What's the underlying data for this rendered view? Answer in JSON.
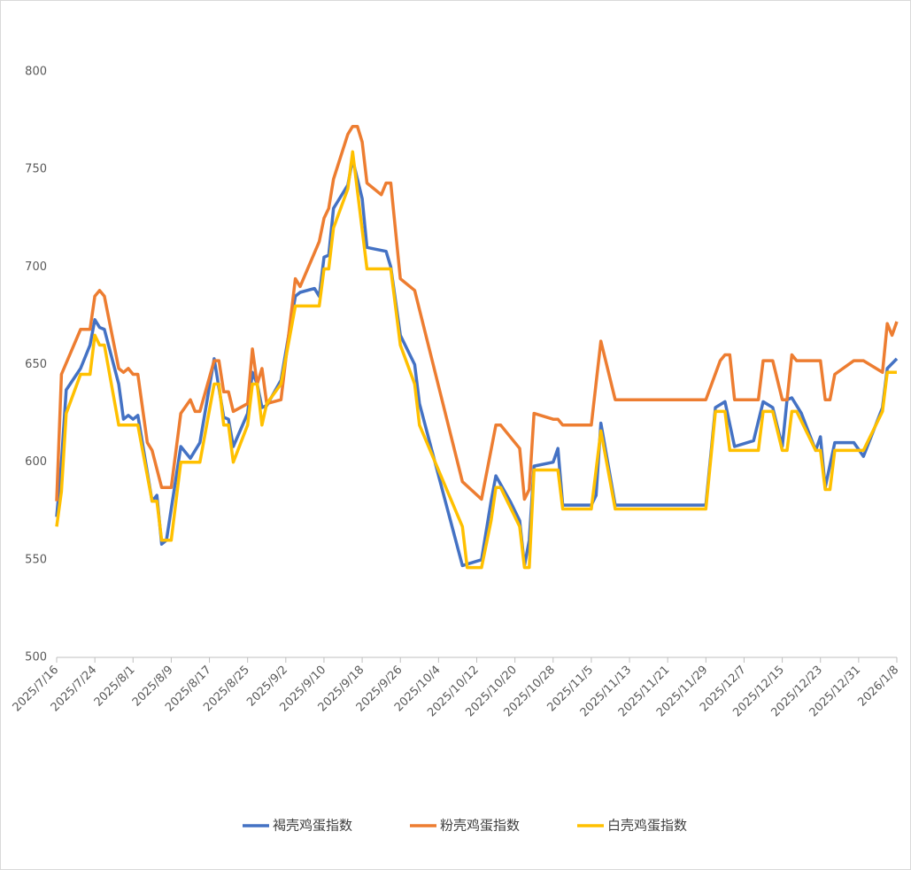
{
  "chart_data": {
    "type": "line",
    "xlim": [
      "2025/7/16",
      "2026/1/8"
    ],
    "xticks": [
      "2025/7/16",
      "2025/7/24",
      "2025/8/1",
      "2025/8/9",
      "2025/8/17",
      "2025/8/25",
      "2025/9/2",
      "2025/9/10",
      "2025/9/18",
      "2025/9/26",
      "2025/10/4",
      "2025/10/12",
      "2025/10/20",
      "2025/10/28",
      "2025/11/5",
      "2025/11/13",
      "2025/11/21",
      "2025/11/29",
      "2025/12/7",
      "2025/12/15",
      "2025/12/23",
      "2025/12/31",
      "2026/1/8"
    ],
    "ylim": [
      500,
      800
    ],
    "yticks": [
      500,
      550,
      600,
      650,
      700,
      750,
      800
    ],
    "grid": false,
    "legend": "bottom",
    "series": [
      {
        "name": "褐壳鸡蛋指数",
        "color": "#4472c4",
        "x": [
          "2025/7/16",
          "2025/7/17",
          "2025/7/18",
          "2025/7/21",
          "2025/7/23",
          "2025/7/24",
          "2025/7/25",
          "2025/7/26",
          "2025/7/29",
          "2025/7/30",
          "2025/7/31",
          "2025/8/1",
          "2025/8/2",
          "2025/8/5",
          "2025/8/6",
          "2025/8/7",
          "2025/8/8",
          "2025/8/11",
          "2025/8/13",
          "2025/8/15",
          "2025/8/18",
          "2025/8/20",
          "2025/8/21",
          "2025/8/22",
          "2025/8/25",
          "2025/8/26",
          "2025/8/27",
          "2025/8/28",
          "2025/8/29",
          "2025/9/1",
          "2025/9/4",
          "2025/9/5",
          "2025/9/8",
          "2025/9/9",
          "2025/9/10",
          "2025/9/11",
          "2025/9/12",
          "2025/9/15",
          "2025/9/16",
          "2025/9/18",
          "2025/9/19",
          "2025/9/23",
          "2025/9/24",
          "2025/9/26",
          "2025/9/29",
          "2025/9/30",
          "2025/10/9",
          "2025/10/13",
          "2025/10/15",
          "2025/10/16",
          "2025/10/19",
          "2025/10/21",
          "2025/10/22",
          "2025/10/23",
          "2025/10/24",
          "2025/10/28",
          "2025/10/29",
          "2025/10/30",
          "2025/11/5",
          "2025/11/6",
          "2025/11/7",
          "2025/11/10",
          "2025/11/29",
          "2025/12/1",
          "2025/12/3",
          "2025/12/5",
          "2025/12/9",
          "2025/12/11",
          "2025/12/13",
          "2025/12/15",
          "2025/12/16",
          "2025/12/17",
          "2025/12/19",
          "2025/12/22",
          "2025/12/23",
          "2025/12/24",
          "2025/12/26",
          "2025/12/30",
          "2026/1/1",
          "2026/1/5",
          "2026/1/6",
          "2026/1/8"
        ],
        "values": [
          572,
          600,
          637,
          648,
          660,
          673,
          669,
          668,
          640,
          622,
          624,
          622,
          624,
          580,
          583,
          558,
          560,
          608,
          602,
          610,
          653,
          623,
          622,
          608,
          625,
          646,
          640,
          628,
          629,
          642,
          685,
          687,
          689,
          685,
          705,
          706,
          730,
          742,
          755,
          735,
          710,
          708,
          700,
          665,
          650,
          630,
          547,
          550,
          580,
          593,
          580,
          570,
          547,
          560,
          598,
          600,
          607,
          578,
          578,
          583,
          620,
          578,
          578,
          628,
          631,
          608,
          611,
          631,
          628,
          608,
          632,
          633,
          625,
          606,
          613,
          587,
          610,
          610,
          603,
          628,
          648,
          653
        ]
      },
      {
        "name": "粉壳鸡蛋指数",
        "color": "#ed7d31",
        "x": [
          "2025/7/16",
          "2025/7/17",
          "2025/7/21",
          "2025/7/23",
          "2025/7/24",
          "2025/7/25",
          "2025/7/26",
          "2025/7/29",
          "2025/7/30",
          "2025/7/31",
          "2025/8/1",
          "2025/8/2",
          "2025/8/4",
          "2025/8/5",
          "2025/8/7",
          "2025/8/9",
          "2025/8/11",
          "2025/8/13",
          "2025/8/14",
          "2025/8/15",
          "2025/8/18",
          "2025/8/19",
          "2025/8/20",
          "2025/8/21",
          "2025/8/22",
          "2025/8/25",
          "2025/8/26",
          "2025/8/27",
          "2025/8/28",
          "2025/8/29",
          "2025/9/1",
          "2025/9/4",
          "2025/9/5",
          "2025/9/9",
          "2025/9/10",
          "2025/9/11",
          "2025/9/12",
          "2025/9/15",
          "2025/9/16",
          "2025/9/17",
          "2025/9/18",
          "2025/9/19",
          "2025/9/22",
          "2025/9/23",
          "2025/9/24",
          "2025/9/26",
          "2025/9/29",
          "2025/10/9",
          "2025/10/13",
          "2025/10/16",
          "2025/10/17",
          "2025/10/21",
          "2025/10/22",
          "2025/10/23",
          "2025/10/24",
          "2025/10/28",
          "2025/10/29",
          "2025/10/30",
          "2025/11/5",
          "2025/11/7",
          "2025/11/10",
          "2025/11/29",
          "2025/12/2",
          "2025/12/3",
          "2025/12/4",
          "2025/12/5",
          "2025/12/10",
          "2025/12/11",
          "2025/12/13",
          "2025/12/15",
          "2025/12/16",
          "2025/12/17",
          "2025/12/18",
          "2025/12/23",
          "2025/12/24",
          "2025/12/25",
          "2025/12/26",
          "2025/12/30",
          "2026/1/1",
          "2026/1/5",
          "2026/1/6",
          "2026/1/7",
          "2026/1/8"
        ],
        "values": [
          580,
          645,
          668,
          668,
          685,
          688,
          685,
          648,
          646,
          648,
          645,
          645,
          610,
          606,
          587,
          587,
          625,
          632,
          626,
          626,
          652,
          652,
          636,
          636,
          626,
          630,
          658,
          640,
          648,
          630,
          632,
          694,
          690,
          713,
          725,
          730,
          745,
          768,
          772,
          772,
          764,
          743,
          737,
          743,
          743,
          694,
          688,
          590,
          581,
          619,
          619,
          607,
          581,
          586,
          625,
          622,
          622,
          619,
          619,
          662,
          632,
          632,
          652,
          655,
          655,
          632,
          632,
          652,
          652,
          632,
          632,
          655,
          652,
          652,
          632,
          632,
          645,
          652,
          652,
          646,
          671,
          665,
          672
        ]
      },
      {
        "name": "白壳鸡蛋指数",
        "color": "#ffc000",
        "x": [
          "2025/7/16",
          "2025/7/17",
          "2025/7/18",
          "2025/7/21",
          "2025/7/23",
          "2025/7/24",
          "2025/7/25",
          "2025/7/26",
          "2025/7/29",
          "2025/8/2",
          "2025/8/5",
          "2025/8/6",
          "2025/8/7",
          "2025/8/9",
          "2025/8/11",
          "2025/8/15",
          "2025/8/18",
          "2025/8/19",
          "2025/8/20",
          "2025/8/21",
          "2025/8/22",
          "2025/8/25",
          "2025/8/26",
          "2025/8/27",
          "2025/8/28",
          "2025/8/29",
          "2025/9/1",
          "2025/9/4",
          "2025/9/9",
          "2025/9/10",
          "2025/9/11",
          "2025/9/12",
          "2025/9/15",
          "2025/9/16",
          "2025/9/19",
          "2025/9/24",
          "2025/9/26",
          "2025/9/29",
          "2025/9/30",
          "2025/10/9",
          "2025/10/10",
          "2025/10/13",
          "2025/10/15",
          "2025/10/16",
          "2025/10/17",
          "2025/10/21",
          "2025/10/22",
          "2025/10/23",
          "2025/10/24",
          "2025/10/29",
          "2025/10/30",
          "2025/11/5",
          "2025/11/7",
          "2025/11/10",
          "2025/11/29",
          "2025/12/1",
          "2025/12/3",
          "2025/12/4",
          "2025/12/10",
          "2025/12/11",
          "2025/12/13",
          "2025/12/15",
          "2025/12/16",
          "2025/12/17",
          "2025/12/18",
          "2025/12/22",
          "2025/12/23",
          "2025/12/24",
          "2025/12/25",
          "2025/12/26",
          "2026/1/1",
          "2026/1/5",
          "2026/1/6",
          "2026/1/8"
        ],
        "values": [
          567,
          585,
          625,
          645,
          645,
          665,
          660,
          660,
          619,
          619,
          580,
          580,
          560,
          560,
          600,
          600,
          640,
          640,
          619,
          619,
          600,
          619,
          640,
          640,
          619,
          630,
          640,
          680,
          680,
          699,
          699,
          720,
          740,
          759,
          699,
          699,
          660,
          640,
          619,
          567,
          546,
          546,
          570,
          587,
          587,
          567,
          546,
          546,
          596,
          596,
          576,
          576,
          616,
          576,
          576,
          626,
          626,
          606,
          606,
          626,
          626,
          606,
          606,
          626,
          626,
          606,
          606,
          586,
          586,
          606,
          606,
          626,
          646,
          646
        ]
      }
    ]
  }
}
